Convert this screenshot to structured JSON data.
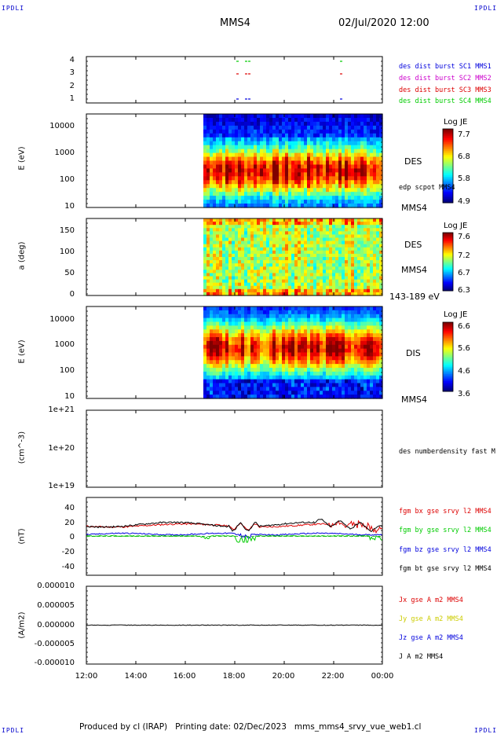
{
  "corners": {
    "tl": "IPDLI",
    "tr": "IPDLI",
    "bl": "IPDLI",
    "br": "IPDLI"
  },
  "header": {
    "spacecraft": "MMS4",
    "date": "02/Jul/2020 12:00"
  },
  "footer": "Produced by cl (IRAP)   Printing date: 02/Dec/2023   mms_mms4_srvy_vue_web1.cl",
  "colors": {
    "red": "#dd0000",
    "green": "#00cc00",
    "blue": "#0000dd",
    "magenta": "#cc00cc",
    "black": "#000000"
  },
  "xaxis": {
    "ticks": [
      "12:00",
      "14:00",
      "16:00",
      "18:00",
      "20:00",
      "22:00",
      "00:00"
    ]
  },
  "chart_data": [
    {
      "type": "scatter",
      "panel": "burst",
      "yticks": [
        "1",
        "2",
        "3",
        "4"
      ],
      "legend": [
        {
          "label": "des dist burst SC1 MMS1",
          "color": "#0000dd"
        },
        {
          "label": "des dist burst SC2 MMS2",
          "color": "#cc00cc"
        },
        {
          "label": "des dist burst SC3 MMS3",
          "color": "#dd0000"
        },
        {
          "label": "des dist burst SC4 MMS4",
          "color": "#00cc00"
        }
      ]
    },
    {
      "type": "heatmap",
      "panel": "des-energy",
      "ylabel": "E (eV)",
      "yticks": [
        "10000",
        "1000",
        "100",
        "10"
      ],
      "right_labels": [
        "DES",
        "edp scpot MMS4",
        "MMS4"
      ],
      "colorbar": {
        "title": "Log JE",
        "ticks": [
          "7.7",
          "6.8",
          "5.8",
          "4.9"
        ]
      }
    },
    {
      "type": "heatmap",
      "panel": "des-pitch",
      "ylabel": "a (deg)",
      "yticks": [
        "150",
        "100",
        "50",
        "0"
      ],
      "right_labels": [
        "DES",
        "MMS4",
        "143-189 eV"
      ],
      "colorbar": {
        "title": "Log JE",
        "ticks": [
          "7.6",
          "7.2",
          "6.7",
          "6.3"
        ]
      }
    },
    {
      "type": "heatmap",
      "panel": "dis-energy",
      "ylabel": "E (eV)",
      "yticks": [
        "10000",
        "1000",
        "100",
        "10"
      ],
      "right_labels": [
        "DIS",
        "MMS4"
      ],
      "colorbar": {
        "title": "Log JE",
        "ticks": [
          "6.6",
          "5.6",
          "4.6",
          "3.6"
        ]
      }
    },
    {
      "type": "line",
      "panel": "density",
      "ylabel": "(cm^-3)",
      "yticks": [
        "1e+21",
        "1e+20",
        "1e+19"
      ],
      "legend": [
        {
          "label": "des numberdensity fast M",
          "color": "#000000"
        }
      ]
    },
    {
      "type": "line",
      "panel": "fgm",
      "ylabel": "(nT)",
      "yticks": [
        "40",
        "20",
        "0",
        "-20",
        "-40"
      ],
      "ylim": [
        -50,
        50
      ],
      "legend": [
        {
          "label": "fgm bx gse srvy l2 MMS4",
          "color": "#dd0000"
        },
        {
          "label": "fgm by gse srvy l2 MMS4",
          "color": "#00cc00"
        },
        {
          "label": "fgm bz gse srvy l2 MMS4",
          "color": "#0000dd"
        },
        {
          "label": "fgm bt gse srvy l2 MMS4",
          "color": "#000000"
        }
      ]
    },
    {
      "type": "line",
      "panel": "current",
      "ylabel": "(A/m2)",
      "yticks": [
        "0.000010",
        "0.000005",
        "0.000000",
        "-0.000005",
        "-0.000010"
      ],
      "ylim": [
        -1e-05,
        1e-05
      ],
      "legend": [
        {
          "label": "Jx gse A m2 MMS4",
          "color": "#dd0000"
        },
        {
          "label": "Jy gse A m2 MMS4",
          "color": "#cccc00"
        },
        {
          "label": "Jz gse A m2 MMS4",
          "color": "#0000dd"
        },
        {
          "label": "J A m2 MMS4",
          "color": "#000000"
        }
      ]
    }
  ]
}
